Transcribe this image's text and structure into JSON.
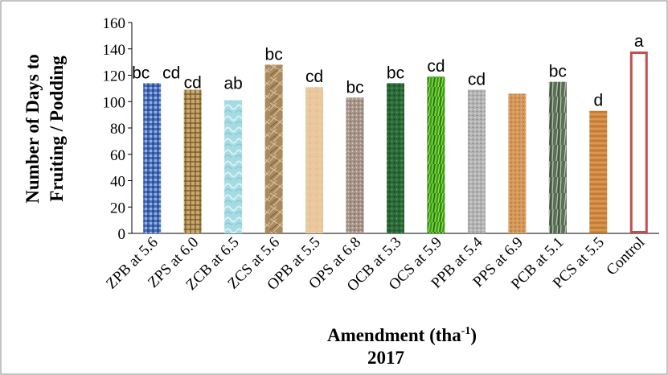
{
  "chart_data": {
    "type": "bar",
    "categories": [
      "ZPB at 5.6",
      "ZPS at 6.0",
      "ZCB at 6.5",
      "ZCS at 5.6",
      "OPB at 5.5",
      "OPS at 6.8",
      "OCB at 5.3",
      "OCS at 5.9",
      "PPB at 5.4",
      "PPS at 6.9",
      "PCB at 5.1",
      "PCS at 5.5",
      "Control"
    ],
    "values": [
      114,
      109,
      101,
      128,
      111,
      103,
      114,
      119,
      109,
      106,
      115,
      93,
      138
    ],
    "letters": [
      "bc",
      "cd",
      "cd",
      "ab",
      "bc",
      "cd",
      "bc",
      "bc",
      "cd",
      "cd",
      "",
      "bc",
      "d",
      "a"
    ],
    "bar_labels": [
      "bc",
      "cd",
      "ab",
      "bc",
      "cd",
      "bc",
      "bc",
      "cd",
      "cd",
      "",
      "bc",
      "d",
      "a"
    ],
    "first_bar_extra_label": "cd",
    "title": "",
    "xlabel": "Amendment (tha",
    "xlabel_sup": "-1",
    "xlabel_close": ")",
    "subtitle": "2017",
    "ylabel_line1": "Number of Days to",
    "ylabel_line2": "Fruiting / Podding",
    "ylim": [
      0,
      160
    ],
    "yticks": [
      0,
      20,
      40,
      60,
      80,
      100,
      120,
      140,
      160
    ],
    "grid": false,
    "legend": "none",
    "colors": {
      "ZPB": "#5a7fc4",
      "ZPS": "#c9a86a",
      "ZCB": "#a8dde6",
      "ZCS": "#b0946a",
      "OPB": "#e8c89a",
      "OPS": "#a89484",
      "OCB": "#2e6e3a",
      "OCS": "#3aa020",
      "PPB": "#b8b8b8",
      "PPS": "#d69a5c",
      "PCB": "#5a6e5a",
      "PCS": "#d08a3a",
      "Control_stroke": "#c0504d"
    }
  }
}
